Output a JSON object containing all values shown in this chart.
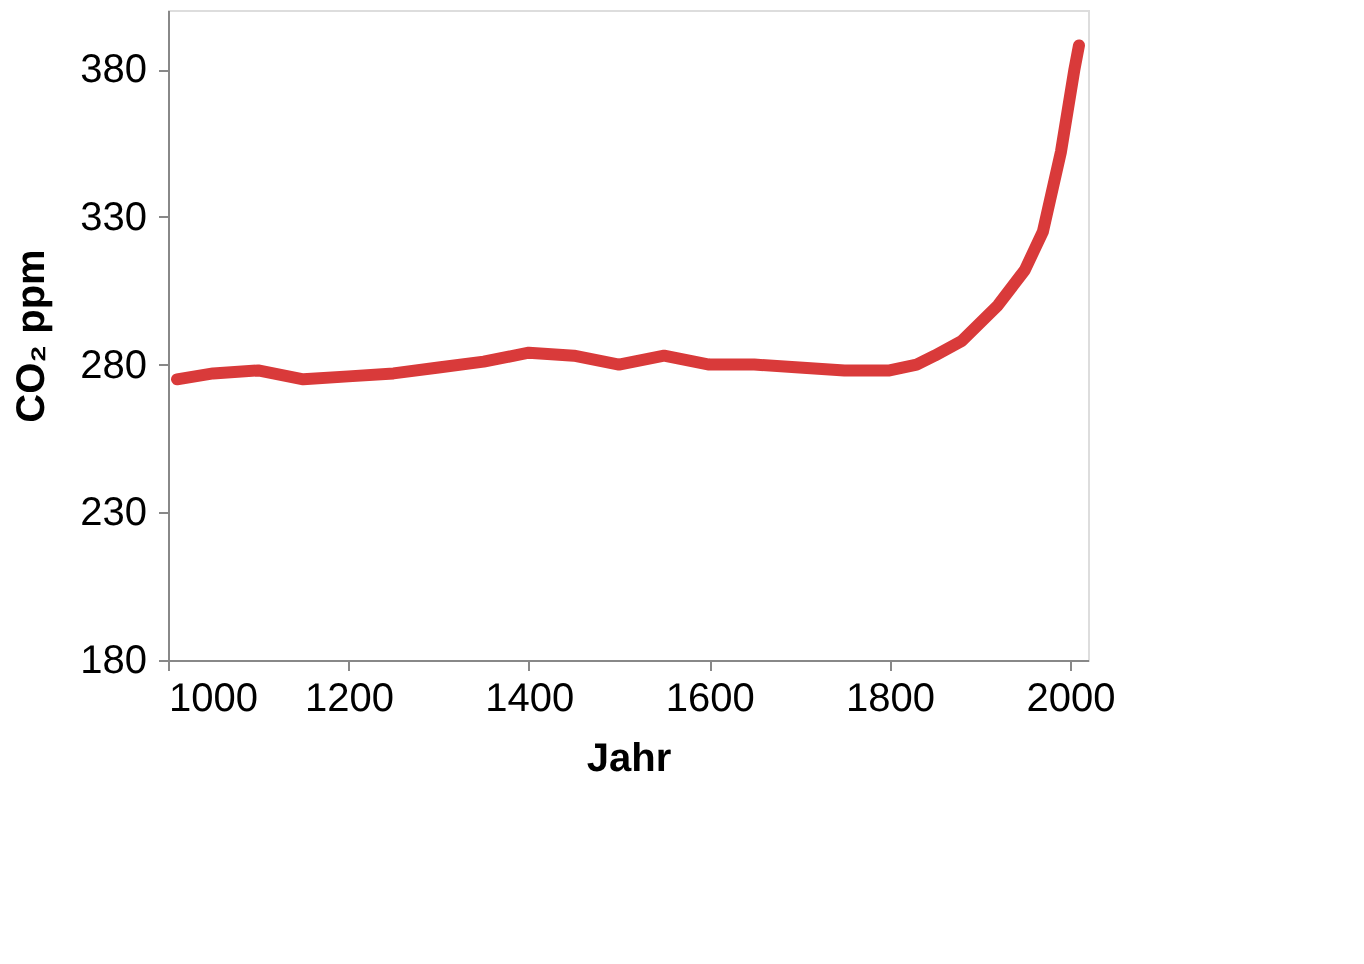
{
  "chart_data": {
    "type": "line",
    "xlabel": "Jahr",
    "ylabel": "CO₂ ppm",
    "x": [
      1010,
      1050,
      1100,
      1150,
      1200,
      1250,
      1300,
      1350,
      1400,
      1450,
      1500,
      1550,
      1600,
      1650,
      1700,
      1750,
      1800,
      1830,
      1850,
      1880,
      1900,
      1920,
      1950,
      1970,
      1990,
      2005,
      2010
    ],
    "series": [
      {
        "color": "#d93a3a",
        "values": [
          275,
          277,
          278,
          275,
          276,
          277,
          279,
          281,
          284,
          283,
          280,
          283,
          280,
          280,
          279,
          278,
          278,
          280,
          283,
          288,
          294,
          300,
          312,
          325,
          352,
          380,
          388
        ]
      }
    ],
    "xlim": [
      1000,
      2020
    ],
    "xticks": [
      1000,
      1200,
      1400,
      1600,
      1800,
      2000
    ],
    "ylim": [
      180,
      400
    ],
    "yticks": [
      180,
      230,
      280,
      330,
      380
    ],
    "grid": false,
    "marker": "none",
    "line_style": "solid"
  }
}
